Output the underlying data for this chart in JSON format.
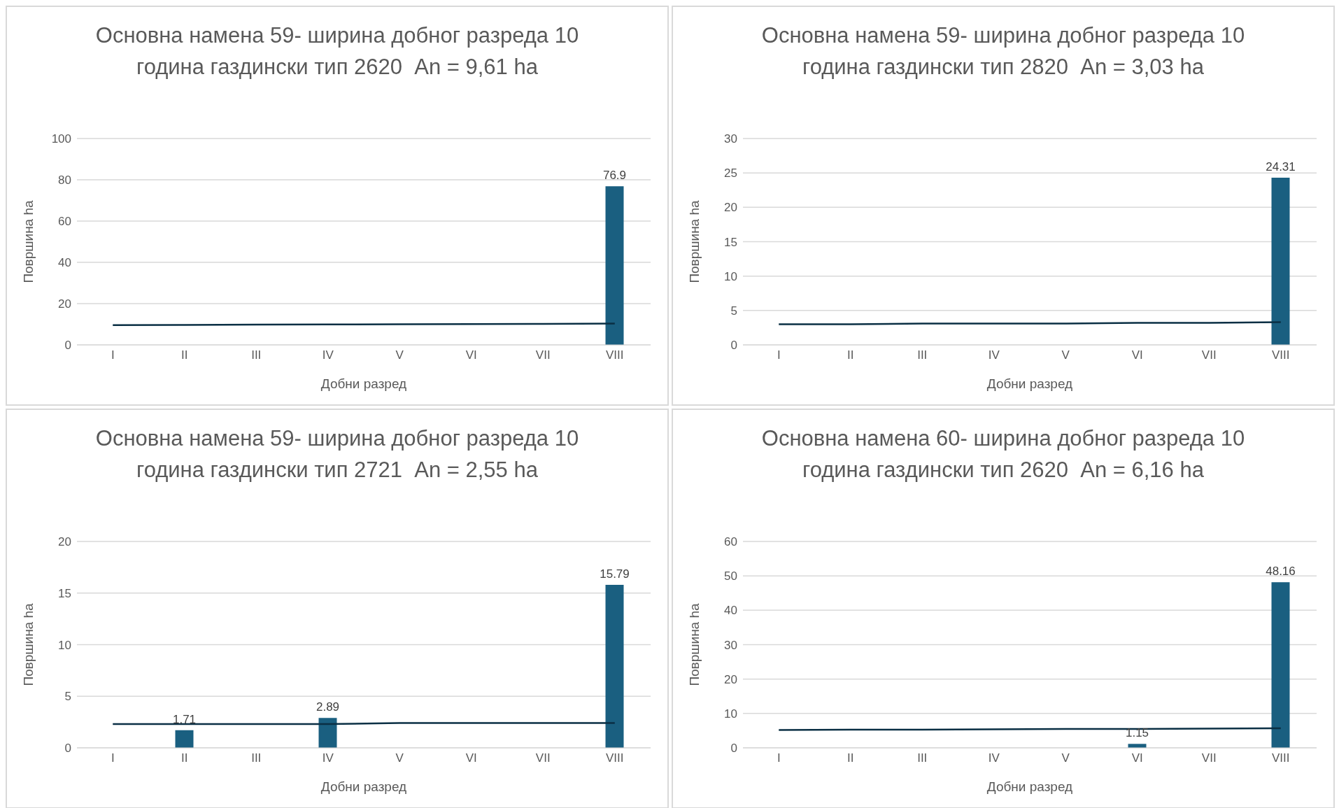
{
  "chart_data": [
    {
      "type": "bar",
      "title": "Основна намена 59- ширина добног разреда 10 година газдински тип 2620  An = 9,61 ha",
      "xlabel": "Добни разред",
      "ylabel": "Површина ha",
      "categories": [
        "I",
        "II",
        "III",
        "IV",
        "V",
        "VI",
        "VII",
        "VIII"
      ],
      "ylim": [
        0,
        100
      ],
      "yticks": [
        0,
        20,
        40,
        60,
        80,
        100
      ],
      "grid": "y",
      "legend": false,
      "series": [
        {
          "color": "#1a5f80",
          "values": [
            0,
            0,
            0,
            0,
            0,
            0,
            0,
            76.9
          ],
          "value_labels": [
            null,
            null,
            null,
            null,
            null,
            null,
            null,
            "76.9"
          ]
        },
        {
          "type": "line",
          "color": "#0a2f44",
          "marker": "none",
          "values": [
            9.6,
            9.7,
            9.8,
            9.9,
            10.0,
            10.1,
            10.2,
            10.3
          ]
        }
      ]
    },
    {
      "type": "bar",
      "title": "Основна намена 59- ширина добног разреда 10 година газдински тип 2820  An = 3,03 ha",
      "xlabel": "Добни разред",
      "ylabel": "Површина ha",
      "categories": [
        "I",
        "II",
        "III",
        "IV",
        "V",
        "VI",
        "VII",
        "VIII"
      ],
      "ylim": [
        0,
        30
      ],
      "yticks": [
        0,
        5,
        10,
        15,
        20,
        25,
        30
      ],
      "grid": "y",
      "legend": false,
      "series": [
        {
          "color": "#1a5f80",
          "values": [
            0,
            0,
            0,
            0,
            0,
            0,
            0,
            24.31
          ],
          "value_labels": [
            null,
            null,
            null,
            null,
            null,
            null,
            null,
            "24.31"
          ]
        },
        {
          "type": "line",
          "color": "#0a2f44",
          "marker": "none",
          "values": [
            3.0,
            3.0,
            3.1,
            3.1,
            3.1,
            3.2,
            3.2,
            3.3
          ]
        }
      ]
    },
    {
      "type": "bar",
      "title": "Основна намена 59- ширина добног разреда 10 година газдински тип 2721  An = 2,55 ha",
      "xlabel": "Добни разред",
      "ylabel": "Површина ha",
      "categories": [
        "I",
        "II",
        "III",
        "IV",
        "V",
        "VI",
        "VII",
        "VIII"
      ],
      "ylim": [
        0,
        20
      ],
      "yticks": [
        0,
        5,
        10,
        15,
        20
      ],
      "grid": "y",
      "legend": false,
      "series": [
        {
          "color": "#1a5f80",
          "values": [
            0,
            1.71,
            0,
            2.89,
            0,
            0,
            0,
            15.79
          ],
          "value_labels": [
            null,
            "1.71",
            null,
            "2.89",
            null,
            null,
            null,
            "15.79"
          ]
        },
        {
          "type": "line",
          "color": "#0a2f44",
          "marker": "none",
          "values": [
            2.3,
            2.3,
            2.3,
            2.3,
            2.4,
            2.4,
            2.4,
            2.4
          ]
        }
      ]
    },
    {
      "type": "bar",
      "title": "Основна намена 60- ширина добног разреда 10 година газдински тип 2620  An = 6,16 ha",
      "xlabel": "Добни разред",
      "ylabel": "Површина ha",
      "categories": [
        "I",
        "II",
        "III",
        "IV",
        "V",
        "VI",
        "VII",
        "VIII"
      ],
      "ylim": [
        0,
        60
      ],
      "yticks": [
        0,
        10,
        20,
        30,
        40,
        50,
        60
      ],
      "grid": "y",
      "legend": false,
      "series": [
        {
          "color": "#1a5f80",
          "values": [
            0,
            0,
            0,
            0,
            0,
            1.15,
            0,
            48.16
          ],
          "value_labels": [
            null,
            null,
            null,
            null,
            null,
            "1.15",
            null,
            "48.16"
          ]
        },
        {
          "type": "line",
          "color": "#0a2f44",
          "marker": "none",
          "values": [
            5.2,
            5.3,
            5.3,
            5.4,
            5.5,
            5.5,
            5.6,
            5.7
          ]
        }
      ]
    }
  ]
}
